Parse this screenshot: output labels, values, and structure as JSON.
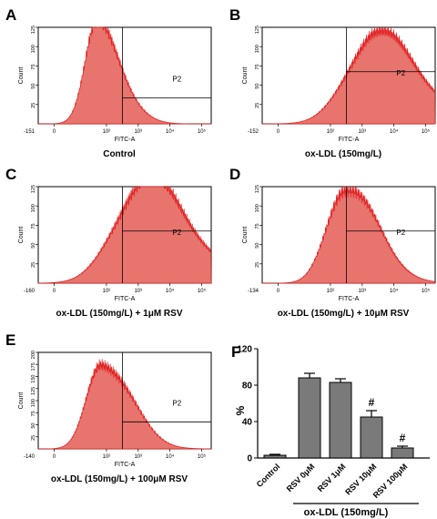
{
  "colors": {
    "fill": "#e8746e",
    "stroke": "#e02020",
    "bar": "#7a7a7a",
    "axis": "#000000"
  },
  "panels": [
    {
      "letter": "A",
      "caption": "Control",
      "gate_label": "P2",
      "x_axis_label": "FITC-A",
      "y_axis_label": "Count",
      "y_ticks": [
        "25",
        "50",
        "75",
        "100",
        "125"
      ],
      "y_max": 125,
      "x_ticks": [
        "-151",
        "0",
        "10²",
        "10³",
        "10⁴",
        "10⁵"
      ],
      "histogram": {
        "peak": 126,
        "mode_log": 1.7,
        "width_decades": 0.38,
        "right_skew": 1.0
      }
    },
    {
      "letter": "B",
      "caption": "ox-LDL (150mg/L)",
      "gate_label": "P2",
      "x_axis_label": "FITC-A",
      "y_axis_label": "Count",
      "y_ticks": [
        "25",
        "50",
        "75",
        "100",
        "125"
      ],
      "y_max": 125,
      "x_ticks": [
        "-152",
        "0",
        "10²",
        "10³",
        "10⁴",
        "10⁵"
      ],
      "histogram": {
        "peak": 118,
        "mode_log": 3.4,
        "width_decades": 0.85,
        "right_skew": 0.6
      }
    },
    {
      "letter": "C",
      "caption": "ox-LDL (150mg/L) + 1μM RSV",
      "gate_label": "P2",
      "x_axis_label": "FITC-A",
      "y_axis_label": "Count",
      "y_ticks": [
        "25",
        "50",
        "75",
        "100",
        "125"
      ],
      "y_max": 125,
      "x_ticks": [
        "-160",
        "0",
        "10²",
        "10³",
        "10⁴",
        "10⁵"
      ],
      "histogram": {
        "peak": 135,
        "mode_log": 3.2,
        "width_decades": 0.9,
        "right_skew": 0.55
      }
    },
    {
      "letter": "D",
      "caption": "ox-LDL (150mg/L) + 10μM RSV",
      "gate_label": "P2",
      "x_axis_label": "FITC-A",
      "y_axis_label": "Count",
      "y_ticks": [
        "25",
        "50",
        "75",
        "100",
        "125"
      ],
      "y_max": 125,
      "x_ticks": [
        "-134",
        "0",
        "10²",
        "10³",
        "10⁴",
        "10⁵"
      ],
      "histogram": {
        "peak": 128,
        "mode_log": 2.45,
        "width_decades": 0.55,
        "right_skew": 0.8
      }
    },
    {
      "letter": "E",
      "caption": "ox-LDL (150mg/L) + 100μM RSV",
      "gate_label": "P2",
      "x_axis_label": "FITC-A",
      "y_axis_label": "Count",
      "y_ticks": [
        "25",
        "50",
        "75",
        "100",
        "125",
        "150",
        "175",
        "200"
      ],
      "y_max": 200,
      "x_ticks": [
        "-140",
        "0",
        "10²",
        "10³",
        "10⁴",
        "10⁵"
      ],
      "histogram": {
        "peak": 185,
        "mode_log": 1.85,
        "width_decades": 0.45,
        "right_skew": 1.0
      }
    }
  ],
  "chart_data": {
    "type": "bar",
    "panel_letter": "F",
    "categories": [
      "Control",
      "RSV 0μM",
      "RSV 1μM",
      "RSV 10μM",
      "RSV 100μM"
    ],
    "values": [
      3,
      88,
      83,
      45,
      11
    ],
    "errors": [
      1,
      5,
      4,
      7,
      2
    ],
    "annotations": [
      "",
      "",
      "",
      "#",
      "#"
    ],
    "ylabel": "%",
    "y_ticks": [
      "0",
      "40",
      "80",
      "120"
    ],
    "ylim": [
      0,
      120
    ],
    "group_label": "ox-LDL (150mg/L)"
  }
}
